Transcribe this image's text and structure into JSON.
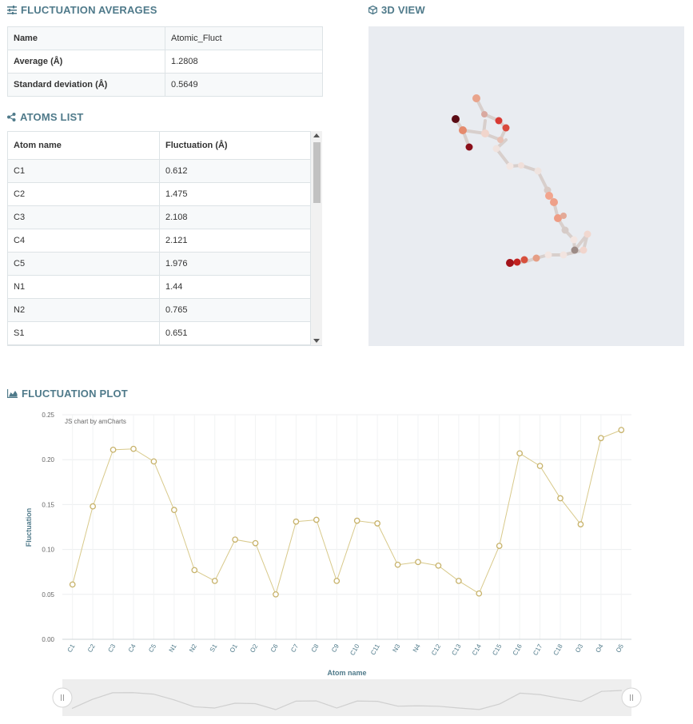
{
  "averages_section": {
    "title": "FLUCTUATION AVERAGES"
  },
  "averages": [
    {
      "label": "Name",
      "value": "Atomic_Fluct"
    },
    {
      "label": "Average (Å)",
      "value": "1.2808"
    },
    {
      "label": "Standard deviation (Å)",
      "value": "0.5649"
    }
  ],
  "atoms_section": {
    "title": "ATOMS LIST",
    "col_name": "Atom name",
    "col_fluct": "Fluctuation (Å)"
  },
  "atoms": [
    {
      "name": "C1",
      "fluct": "0.612"
    },
    {
      "name": "C2",
      "fluct": "1.475"
    },
    {
      "name": "C3",
      "fluct": "2.108"
    },
    {
      "name": "C4",
      "fluct": "2.121"
    },
    {
      "name": "C5",
      "fluct": "1.976"
    },
    {
      "name": "N1",
      "fluct": "1.44"
    },
    {
      "name": "N2",
      "fluct": "0.765"
    },
    {
      "name": "S1",
      "fluct": "0.651"
    }
  ],
  "view3d": {
    "title": "3D VIEW"
  },
  "plot": {
    "title": "FLUCTUATION PLOT",
    "credit": "JS chart by amCharts"
  },
  "chart_data": {
    "type": "line",
    "categories": [
      "C1",
      "C2",
      "C3",
      "C4",
      "C5",
      "N1",
      "N2",
      "S1",
      "O1",
      "O2",
      "C6",
      "C7",
      "C8",
      "C9",
      "C10",
      "C11",
      "N3",
      "N4",
      "C12",
      "C13",
      "C14",
      "C15",
      "C16",
      "C17",
      "C18",
      "O3",
      "O4",
      "O5"
    ],
    "values": [
      0.061,
      0.148,
      0.211,
      0.212,
      0.198,
      0.144,
      0.077,
      0.065,
      0.111,
      0.107,
      0.05,
      0.131,
      0.133,
      0.065,
      0.132,
      0.129,
      0.083,
      0.086,
      0.082,
      0.065,
      0.051,
      0.104,
      0.207,
      0.193,
      0.157,
      0.128,
      0.224,
      0.233
    ],
    "xlabel": "Atom name",
    "ylabel": "Fluctuation",
    "ylim": [
      0,
      0.25
    ],
    "yticks": [
      "0.00",
      "0.05",
      "0.10",
      "0.15",
      "0.20",
      "0.25"
    ],
    "grid": true,
    "color": "#d8c98a"
  }
}
